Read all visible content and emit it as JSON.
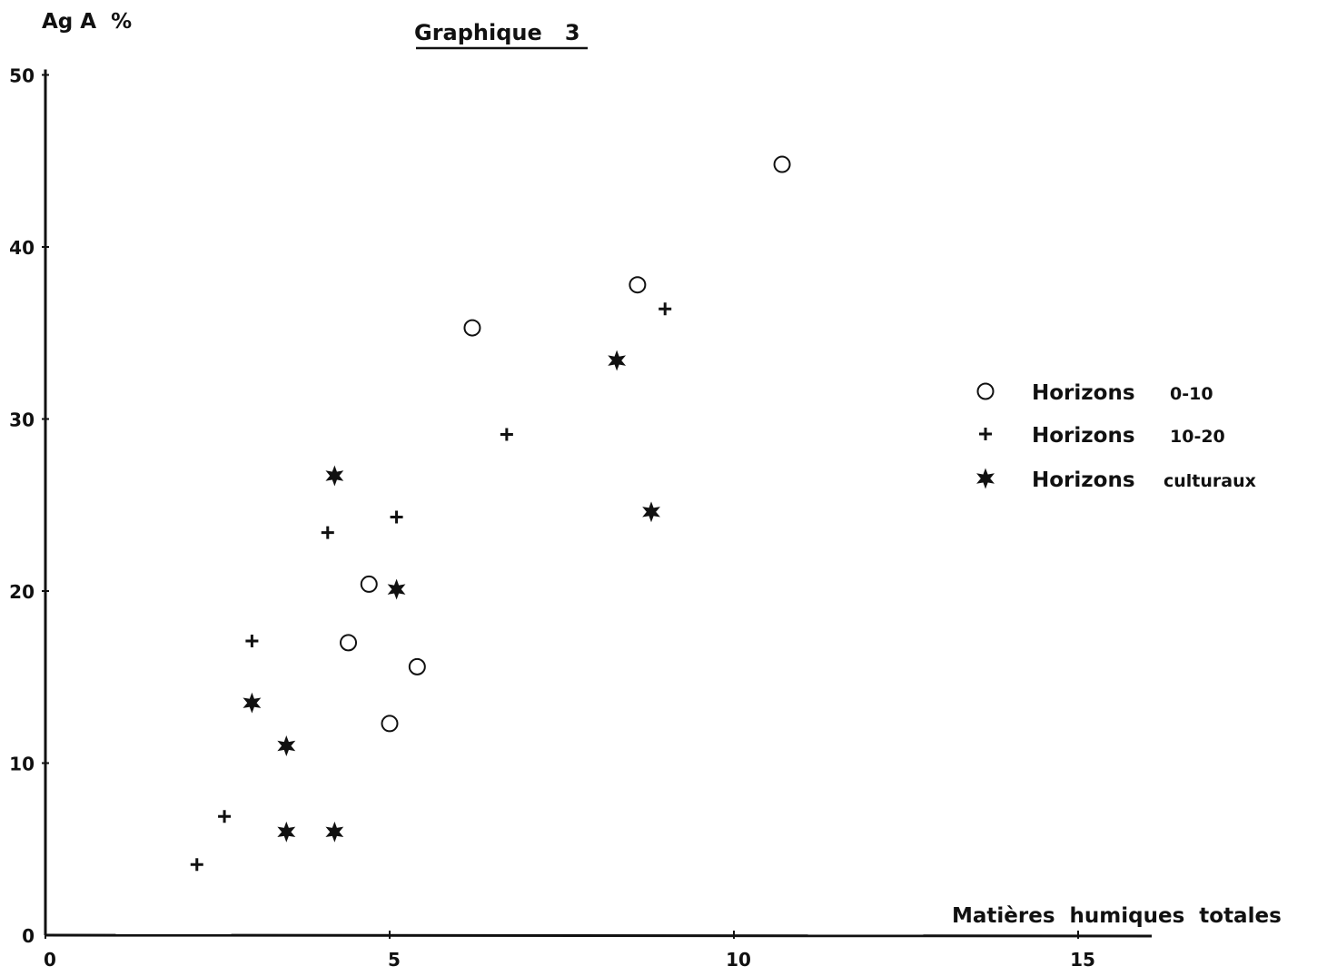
{
  "chart_data": {
    "type": "scatter",
    "title": "Graphique   3",
    "xlabel": "Matières  humiques  totales",
    "ylabel": "Ag A  %",
    "xlim": [
      0,
      16
    ],
    "ylim": [
      0,
      50
    ],
    "xticks": [
      0,
      5,
      10,
      15
    ],
    "yticks": [
      0,
      10,
      20,
      30,
      40,
      50
    ],
    "grid": false,
    "legend_position": "right",
    "series": [
      {
        "name": "Horizons",
        "range_label": "0-10",
        "marker": "circle",
        "points": [
          {
            "x": 10.7,
            "y": 44.8
          },
          {
            "x": 8.6,
            "y": 37.8
          },
          {
            "x": 6.2,
            "y": 35.3
          },
          {
            "x": 4.7,
            "y": 20.4
          },
          {
            "x": 4.4,
            "y": 17.0
          },
          {
            "x": 5.4,
            "y": 15.6
          },
          {
            "x": 5.0,
            "y": 12.3
          }
        ]
      },
      {
        "name": "Horizons",
        "range_label": "10-20",
        "marker": "plus",
        "points": [
          {
            "x": 9.0,
            "y": 36.4
          },
          {
            "x": 6.7,
            "y": 29.1
          },
          {
            "x": 5.1,
            "y": 24.3
          },
          {
            "x": 4.1,
            "y": 23.4
          },
          {
            "x": 3.0,
            "y": 17.1
          },
          {
            "x": 2.6,
            "y": 6.9
          },
          {
            "x": 2.2,
            "y": 4.1
          }
        ]
      },
      {
        "name": "Horizons",
        "range_label": "culturaux",
        "marker": "star",
        "points": [
          {
            "x": 8.3,
            "y": 33.4
          },
          {
            "x": 4.2,
            "y": 26.7
          },
          {
            "x": 8.8,
            "y": 24.6
          },
          {
            "x": 5.1,
            "y": 20.1
          },
          {
            "x": 3.0,
            "y": 13.5
          },
          {
            "x": 3.5,
            "y": 11.0
          },
          {
            "x": 3.5,
            "y": 6.0
          },
          {
            "x": 4.2,
            "y": 6.0
          }
        ]
      }
    ]
  }
}
